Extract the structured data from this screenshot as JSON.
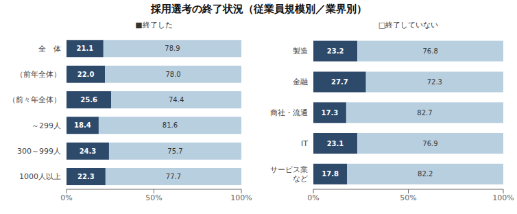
{
  "chart_data": [
    {
      "type": "bar",
      "title": "採用選考の終了状況（従業員規模別／業界別）",
      "orientation": "horizontal",
      "stacked": true,
      "grid": false,
      "data_labels": true,
      "categories": [
        "全　体",
        "（前年全体）",
        "（前々年全体）",
        "～299人",
        "300～999人",
        "1000人以上"
      ],
      "series": [
        {
          "name": "■終了した",
          "color": "#2e4a6b",
          "values": [
            21.1,
            22.0,
            25.6,
            18.4,
            24.3,
            22.3
          ],
          "value_labels": [
            "21.1",
            "22.0",
            "25.6",
            "18.4",
            "24.3",
            "22.3"
          ]
        },
        {
          "color": "#b8cfe0",
          "values": [
            78.9,
            78.0,
            74.4,
            81.6,
            75.7,
            77.7
          ],
          "value_labels": [
            "78.9",
            "78.0",
            "74.4",
            "81.6",
            "75.7",
            "77.7"
          ]
        }
      ],
      "xlim": [
        0,
        100
      ],
      "xticks": [
        {
          "value": 0,
          "label": "0%"
        },
        {
          "value": 50,
          "label": "50%"
        },
        {
          "value": 100,
          "label": "100%"
        }
      ]
    },
    {
      "type": "bar",
      "orientation": "horizontal",
      "stacked": true,
      "grid": false,
      "data_labels": true,
      "categories": [
        "製造",
        "金融",
        "商社・流通",
        "IT",
        "サービス業\nなど"
      ],
      "series": [
        {
          "color": "#2e4a6b",
          "values": [
            23.2,
            27.7,
            17.3,
            23.1,
            17.8
          ],
          "value_labels": [
            "23.2",
            "27.7",
            "17.3",
            "23.1",
            "17.8"
          ]
        },
        {
          "name": "□終了していない",
          "color": "#b8cfe0",
          "values": [
            76.8,
            72.3,
            82.7,
            76.9,
            82.2
          ],
          "value_labels": [
            "76.8",
            "72.3",
            "82.7",
            "76.9",
            "82.2"
          ]
        }
      ],
      "xlim": [
        0,
        100
      ],
      "xticks": [
        {
          "value": 0,
          "label": "0%"
        },
        {
          "value": 50,
          "label": "50%"
        },
        {
          "value": 100,
          "label": "100%"
        }
      ]
    }
  ]
}
